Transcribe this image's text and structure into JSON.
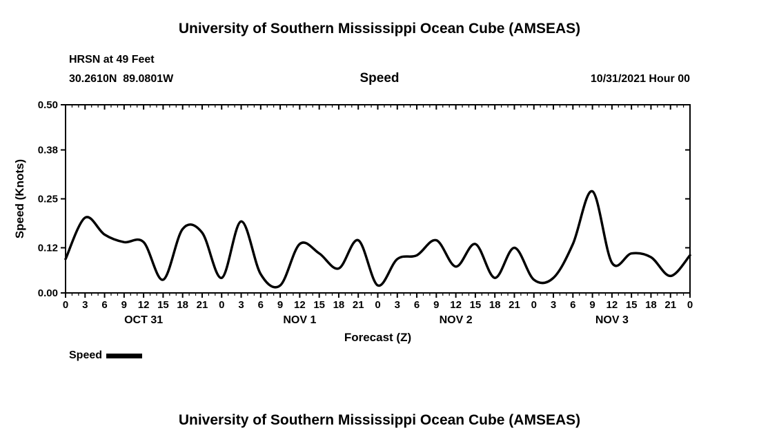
{
  "header": {
    "title": "University of Southern Mississippi Ocean Cube (AMSEAS)",
    "station": "HRSN at 49 Feet",
    "coordinates": "30.2610N  89.0801W",
    "panel_label": "Speed",
    "run_datetime": "10/31/2021 Hour 00"
  },
  "legend": {
    "label": "Speed",
    "swatch_color": "#000000"
  },
  "footer": {
    "title": "University of Southern Mississippi Ocean Cube (AMSEAS)"
  },
  "chart_data": {
    "type": "line",
    "title": "Speed",
    "xlabel": "Forecast (Z)",
    "ylabel": "Speed (Knots)",
    "xlim_hours": [
      0,
      96
    ],
    "ylim": [
      0,
      0.5
    ],
    "yticks": [
      0.0,
      0.12,
      0.25,
      0.38,
      0.5
    ],
    "ytick_labels": [
      "0.00",
      "0.12",
      "0.25",
      "0.38",
      "0.50"
    ],
    "x_hours": [
      0,
      3,
      6,
      9,
      12,
      15,
      18,
      21,
      24,
      27,
      30,
      33,
      36,
      39,
      42,
      45,
      48,
      51,
      54,
      57,
      60,
      63,
      66,
      69,
      72,
      75,
      78,
      81,
      84,
      87,
      90,
      93,
      96
    ],
    "xtick_labels": [
      "0",
      "3",
      "6",
      "9",
      "12",
      "15",
      "18",
      "21",
      "0",
      "3",
      "6",
      "9",
      "12",
      "15",
      "18",
      "21",
      "0",
      "3",
      "6",
      "9",
      "12",
      "15",
      "18",
      "21",
      "0",
      "3",
      "6",
      "9",
      "12",
      "15",
      "18",
      "21",
      "0"
    ],
    "day_labels": [
      {
        "label": "OCT 31",
        "center_hour": 12
      },
      {
        "label": "NOV 1",
        "center_hour": 36
      },
      {
        "label": "NOV 2",
        "center_hour": 60
      },
      {
        "label": "NOV 3",
        "center_hour": 84
      }
    ],
    "grid": false,
    "legend_position": "bottom-left",
    "series": [
      {
        "name": "Speed",
        "color": "#000000",
        "line_width": 3.5,
        "values": [
          0.09,
          0.2,
          0.155,
          0.135,
          0.135,
          0.035,
          0.17,
          0.16,
          0.04,
          0.19,
          0.05,
          0.02,
          0.13,
          0.105,
          0.065,
          0.14,
          0.02,
          0.09,
          0.1,
          0.14,
          0.07,
          0.13,
          0.04,
          0.12,
          0.035,
          0.04,
          0.13,
          0.27,
          0.08,
          0.105,
          0.095,
          0.045,
          0.1
        ]
      }
    ]
  }
}
